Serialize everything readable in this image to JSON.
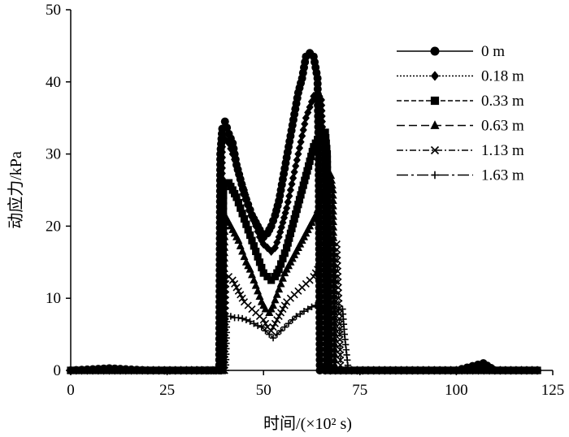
{
  "chart_data": {
    "type": "line",
    "title": "",
    "xlabel": "时间/(×10² s)",
    "ylabel": "动应力/kPa",
    "xlim": [
      0,
      125
    ],
    "ylim": [
      0,
      50
    ],
    "xticks": [
      "0",
      "25",
      "50",
      "75",
      "100",
      "125"
    ],
    "yticks": [
      "0",
      "10",
      "20",
      "30",
      "40",
      "50"
    ],
    "grid": false,
    "legend_position": "top-right",
    "series": [
      {
        "name": "0 m",
        "marker": "circle",
        "dash": "solid",
        "x": [
          0,
          10,
          20,
          30,
          38.5,
          38.8,
          39.3,
          40,
          41,
          42,
          43,
          44,
          45,
          46,
          47,
          48,
          49,
          50,
          51,
          52,
          53,
          54,
          55,
          56,
          57,
          58,
          59,
          60,
          61,
          62,
          63,
          64,
          64.3,
          64.6,
          70,
          80,
          90,
          100,
          107,
          110,
          121
        ],
        "y": [
          0,
          0.3,
          0,
          0,
          0,
          30,
          33.5,
          34.5,
          32.8,
          31.5,
          28.5,
          26.5,
          24.5,
          23,
          21.5,
          20.5,
          19.5,
          18.5,
          19,
          20,
          21.5,
          23.5,
          26.5,
          29.5,
          32.5,
          35.5,
          38.5,
          40.5,
          43.5,
          44,
          43.5,
          40.5,
          30,
          0,
          0,
          0,
          0,
          0,
          1,
          0,
          0
        ]
      },
      {
        "name": "0.18 m",
        "marker": "diamond",
        "dash": "dotted",
        "x": [
          0,
          10,
          20,
          30,
          39,
          39.3,
          40,
          41,
          42,
          43,
          44,
          45,
          46,
          47,
          48,
          49,
          50,
          51,
          52,
          53,
          54,
          55,
          56,
          57,
          58,
          59,
          60,
          61,
          62,
          63,
          64,
          65,
          65.5,
          66,
          70,
          80,
          90,
          100,
          110,
          121
        ],
        "y": [
          0,
          0,
          0,
          0,
          0,
          31,
          32,
          31.5,
          30,
          28.5,
          26.5,
          25,
          23,
          21.5,
          20,
          18.5,
          17.5,
          17,
          16.5,
          17,
          18.5,
          20.5,
          22.5,
          25,
          27.5,
          30,
          32.5,
          35,
          36.5,
          38,
          38.5,
          37.5,
          30,
          0,
          0,
          0,
          0,
          0,
          0,
          0
        ]
      },
      {
        "name": "0.33 m",
        "marker": "square",
        "dash": "dashed",
        "x": [
          0,
          10,
          20,
          30,
          39.3,
          39.6,
          40,
          41,
          42,
          43,
          44,
          45,
          46,
          47,
          48,
          49,
          50,
          51,
          52,
          53,
          54,
          55,
          56,
          57,
          58,
          59,
          60,
          61,
          62,
          63,
          64,
          65,
          66,
          66.5,
          67,
          70,
          80,
          90,
          100,
          110,
          121
        ],
        "y": [
          0,
          0,
          0,
          0,
          0,
          25,
          26,
          26,
          25,
          24,
          22.5,
          21,
          19.5,
          18,
          16.5,
          15,
          13.5,
          13,
          12.5,
          13,
          14,
          15.5,
          17,
          19,
          21,
          23,
          25,
          27,
          29,
          31,
          32,
          33,
          33,
          30,
          0,
          0,
          0,
          0,
          0,
          0,
          0
        ]
      },
      {
        "name": "0.63 m",
        "marker": "triangle",
        "dash": "longdash",
        "x": [
          0,
          10,
          20,
          30,
          39.6,
          39.9,
          40.5,
          41.5,
          42.5,
          43.5,
          44.5,
          45.5,
          46.5,
          47.5,
          48.5,
          49.5,
          50.5,
          51.5,
          52.5,
          53.5,
          54.5,
          55.5,
          56.5,
          57.5,
          58.5,
          59.5,
          60.5,
          61.5,
          62.5,
          63.5,
          64.5,
          65.5,
          66.5,
          67.5,
          68,
          68.5,
          70,
          80,
          90,
          100,
          110,
          121
        ],
        "y": [
          0,
          0,
          0,
          0,
          0,
          20,
          21,
          20,
          19,
          18,
          16.5,
          15,
          14,
          12.5,
          11,
          9.5,
          8.5,
          8,
          9,
          10.5,
          12,
          13.5,
          14.5,
          15.5,
          16.5,
          17.5,
          18.5,
          19.5,
          20.5,
          21.5,
          23,
          24.5,
          26,
          27,
          25,
          0,
          0,
          0,
          0,
          0,
          0,
          0
        ]
      },
      {
        "name": "1.13 m",
        "marker": "x",
        "dash": "dashdot",
        "x": [
          0,
          10,
          20,
          30,
          39.9,
          40.2,
          41,
          42,
          43,
          44,
          45,
          46,
          47,
          48,
          49,
          50,
          51,
          52,
          53,
          54,
          55,
          56,
          57,
          58,
          59,
          60,
          61,
          62,
          63,
          64,
          65,
          66,
          67,
          68,
          69,
          69.5,
          70,
          80,
          90,
          100,
          110,
          121
        ],
        "y": [
          0,
          0,
          0,
          0,
          0,
          12,
          13,
          12.5,
          11.5,
          10.5,
          9.5,
          9,
          8.5,
          8,
          7.5,
          7,
          6,
          5.5,
          6.5,
          7.5,
          8.5,
          9.5,
          10,
          10.5,
          11,
          11.5,
          12,
          12.5,
          13,
          14,
          15,
          16,
          17,
          18,
          17.5,
          10,
          0,
          0,
          0,
          0,
          0,
          0
        ]
      },
      {
        "name": "1.63 m",
        "marker": "plus",
        "dash": "longdashdot",
        "x": [
          0,
          10,
          20,
          30,
          40.2,
          40.5,
          41.5,
          42.5,
          43.5,
          44.5,
          45.5,
          46.5,
          47.5,
          48.5,
          49.5,
          50.5,
          51.5,
          52.5,
          53.5,
          54.5,
          55.5,
          56.5,
          57.5,
          58.5,
          59.5,
          60.5,
          61.5,
          62.5,
          63.5,
          64.5,
          65.5,
          66.5,
          67.5,
          68.5,
          69.5,
          70.5,
          71,
          72,
          80,
          90,
          100,
          110,
          121
        ],
        "y": [
          0,
          0,
          0,
          0,
          0,
          7.5,
          7.5,
          7.3,
          7.3,
          7.2,
          7,
          6.8,
          6.5,
          6.2,
          6,
          5.5,
          5,
          4.5,
          5,
          5.5,
          6,
          6.5,
          7,
          7.5,
          7.8,
          8.2,
          8.5,
          8.8,
          9,
          8.8,
          8.5,
          8.2,
          8,
          8.2,
          8.5,
          8.5,
          5,
          0,
          0,
          0,
          0,
          0,
          0
        ]
      }
    ]
  }
}
